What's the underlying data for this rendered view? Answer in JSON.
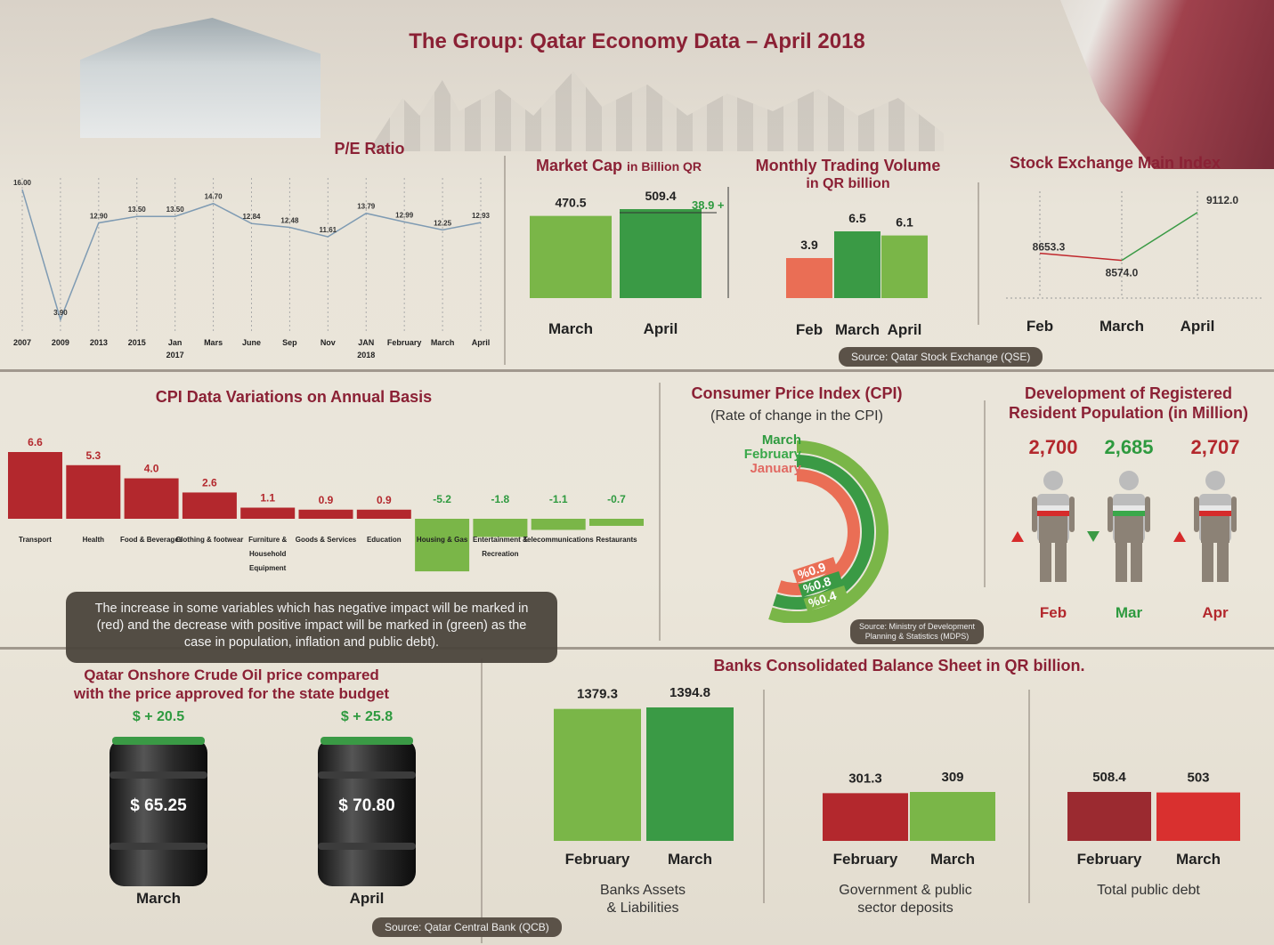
{
  "title": "The Group: Qatar Economy Data – April 2018",
  "colors": {
    "maroon": "#8b2135",
    "light_green": "#7ab648",
    "green": "#3a9a45",
    "red": "#b3282d",
    "salmon": "#ea6e55",
    "green_text": "#2e9a3f"
  },
  "pe": {
    "title": "P/E Ratio",
    "chart_data": {
      "type": "line",
      "categories": [
        "2007",
        "2009",
        "2013",
        "2015",
        "Jan 2017",
        "Mars",
        "June",
        "Sep",
        "Nov",
        "JAN 2018",
        "February",
        "March",
        "April"
      ],
      "values": [
        16.0,
        3.9,
        12.9,
        13.5,
        13.5,
        14.7,
        12.84,
        12.48,
        11.61,
        13.79,
        12.99,
        12.25,
        12.93
      ],
      "value_labels": [
        "16.00",
        "3.90",
        "12.90",
        "13.50",
        "13.50",
        "14.70",
        "12.84",
        "12.48",
        "11.61",
        "13.79",
        "12.99",
        "12.25",
        "12.93"
      ],
      "ticks": [
        [
          "2007"
        ],
        [
          "2009"
        ],
        [
          "2013"
        ],
        [
          "2015"
        ],
        [
          "Jan",
          "2017"
        ],
        [
          "Mars"
        ],
        [
          "June"
        ],
        [
          "Sep"
        ],
        [
          "Nov"
        ],
        [
          "JAN",
          "2018"
        ],
        [
          "February"
        ],
        [
          "March"
        ],
        [
          "April"
        ]
      ],
      "ylim": [
        3,
        16.5
      ]
    }
  },
  "market_cap": {
    "title": "Market Cap",
    "title_small": "in Billion QR",
    "chart_data": {
      "type": "bar",
      "categories": [
        "March",
        "April"
      ],
      "values": [
        470.5,
        509.4
      ],
      "value_labels": [
        "470.5",
        "509.4"
      ],
      "annotation": "38.9 +"
    }
  },
  "trading": {
    "title": "Monthly Trading Volume",
    "subtitle": "in QR  billion",
    "chart_data": {
      "type": "bar",
      "categories": [
        "Feb",
        "March",
        "April"
      ],
      "values": [
        3.9,
        6.5,
        6.1
      ],
      "value_labels": [
        "3.9",
        "6.5",
        "6.1"
      ]
    }
  },
  "index": {
    "title": "Stock Exchange Main Index",
    "chart_data": {
      "type": "line",
      "categories": [
        "Feb",
        "March",
        "April"
      ],
      "values": [
        8653.3,
        8574.0,
        9112.0
      ],
      "value_labels": [
        "8653.3",
        "8574.0",
        "9112.0"
      ]
    }
  },
  "source_qse": "Source: Qatar Stock Exchange (QSE)",
  "cpi_var": {
    "title": "CPI Data Variations on Annual Basis",
    "chart_data": {
      "type": "bar",
      "categories": [
        "Transport",
        "Health",
        "Food & Beverages",
        "Clothing & footwear",
        "Furniture & Household Equipment",
        "Goods & Services",
        "Education",
        "Housing & Gas",
        "Entertainment & Recreation",
        "Telecommunications",
        "Restaurants"
      ],
      "tick_lines": [
        [
          "Transport"
        ],
        [
          "Health"
        ],
        [
          "Food & Beverages"
        ],
        [
          "Clothing & footwear"
        ],
        [
          "Furniture &",
          "Household",
          "Equipment"
        ],
        [
          "Goods & Services"
        ],
        [
          "Education"
        ],
        [
          "Housing & Gas"
        ],
        [
          "Entertainment &",
          "Recreation"
        ],
        [
          "Telecommunications"
        ],
        [
          "Restaurants"
        ]
      ],
      "values": [
        6.6,
        5.3,
        4.0,
        2.6,
        1.1,
        0.9,
        0.9,
        -5.2,
        -1.8,
        -1.1,
        -0.7
      ],
      "value_labels": [
        "6.6",
        "5.3",
        "4.0",
        "2.6",
        "1.1",
        "0.9",
        "0.9",
        "-5.2",
        "-1.8",
        "-1.1",
        "-0.7"
      ]
    }
  },
  "note": "The increase in some variables which has negative impact will be marked in (red) and the decrease with positive impact will be marked in (green) as the case in population, inflation and public debt).",
  "cpi": {
    "title": "Consumer Price Index (CPI)",
    "subtitle": "(Rate of change in the CPI)",
    "chart_data": {
      "type": "pie",
      "categories": [
        "March",
        "February",
        "January"
      ],
      "values": [
        0.4,
        0.8,
        0.9
      ],
      "value_labels": [
        "%0.4",
        "%0.8",
        "%0.9"
      ]
    },
    "source": "Source: Ministry of Development Planning & Statistics (MDPS)",
    "source_lines": [
      "Source: Ministry of Development",
      "Planning & Statistics (MDPS)"
    ]
  },
  "population": {
    "title_line1": "Development of Registered",
    "title_line2": "Resident Population (in Million)",
    "chart_data": {
      "type": "table",
      "categories": [
        "Feb",
        "Mar",
        "Apr"
      ],
      "values": [
        2700,
        2685,
        2707
      ],
      "value_labels": [
        "2,700",
        "2,685",
        "2,707"
      ],
      "trend": [
        "up",
        "down",
        "up"
      ]
    }
  },
  "oil": {
    "title_line1": "Qatar Onshore Crude Oil price compared",
    "title_line2": "with the price approved for the state budget",
    "chart_data": {
      "type": "table",
      "categories": [
        "March",
        "April"
      ],
      "values": [
        65.25,
        70.8
      ],
      "value_labels": [
        "$ 65.25",
        "$ 70.80"
      ],
      "diff_labels": [
        "$ + 20.5",
        "$ + 25.8"
      ]
    }
  },
  "banks": {
    "title": "Banks Consolidated Balance Sheet in QR billion.",
    "chart_data": [
      {
        "type": "bar",
        "name": "Banks Assets & Liabilities",
        "name_lines": [
          "Banks Assets",
          "& Liabilities"
        ],
        "categories": [
          "February",
          "March"
        ],
        "values": [
          1379.3,
          1394.8
        ],
        "value_labels": [
          "1379.3",
          "1394.8"
        ]
      },
      {
        "type": "bar",
        "name": "Government & public sector deposits",
        "name_lines": [
          "Government & public",
          "sector deposits"
        ],
        "categories": [
          "February",
          "March"
        ],
        "values": [
          301.3,
          309
        ],
        "value_labels": [
          "301.3",
          "309"
        ]
      },
      {
        "type": "bar",
        "name": "Total public debt",
        "name_lines": [
          "Total public debt"
        ],
        "categories": [
          "February",
          "March"
        ],
        "values": [
          508.4,
          503
        ],
        "value_labels": [
          "508.4",
          "503"
        ]
      }
    ]
  },
  "source_qcb": "Source: Qatar Central Bank (QCB)"
}
